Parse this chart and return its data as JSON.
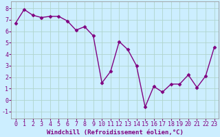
{
  "x": [
    0,
    1,
    2,
    3,
    4,
    5,
    6,
    7,
    8,
    9,
    10,
    11,
    12,
    13,
    14,
    15,
    16,
    17,
    18,
    19,
    20,
    21,
    22,
    23
  ],
  "y": [
    6.7,
    7.9,
    7.4,
    7.2,
    7.3,
    7.3,
    6.9,
    6.1,
    6.4,
    5.6,
    1.5,
    2.5,
    5.1,
    4.4,
    3.0,
    -0.6,
    1.2,
    0.7,
    1.4,
    1.4,
    2.2,
    1.1,
    2.1,
    4.6
  ],
  "line_color": "#800080",
  "marker": "D",
  "marker_size": 2.5,
  "line_width": 1.0,
  "background_color": "#cceeff",
  "grid_color": "#aaddcc",
  "xlabel": "Windchill (Refroidissement éolien,°C)",
  "xlabel_fontsize": 6.5,
  "ylabel_ticks": [
    -1,
    0,
    1,
    2,
    3,
    4,
    5,
    6,
    7,
    8
  ],
  "xlim": [
    -0.5,
    23.5
  ],
  "ylim": [
    -1.6,
    8.6
  ],
  "xtick_labels": [
    "0",
    "1",
    "2",
    "3",
    "4",
    "5",
    "6",
    "7",
    "8",
    "9",
    "10",
    "11",
    "12",
    "13",
    "14",
    "15",
    "16",
    "17",
    "18",
    "19",
    "20",
    "21",
    "22",
    "23"
  ],
  "tick_fontsize": 6.0,
  "tick_color": "#800080",
  "label_color": "#800080"
}
